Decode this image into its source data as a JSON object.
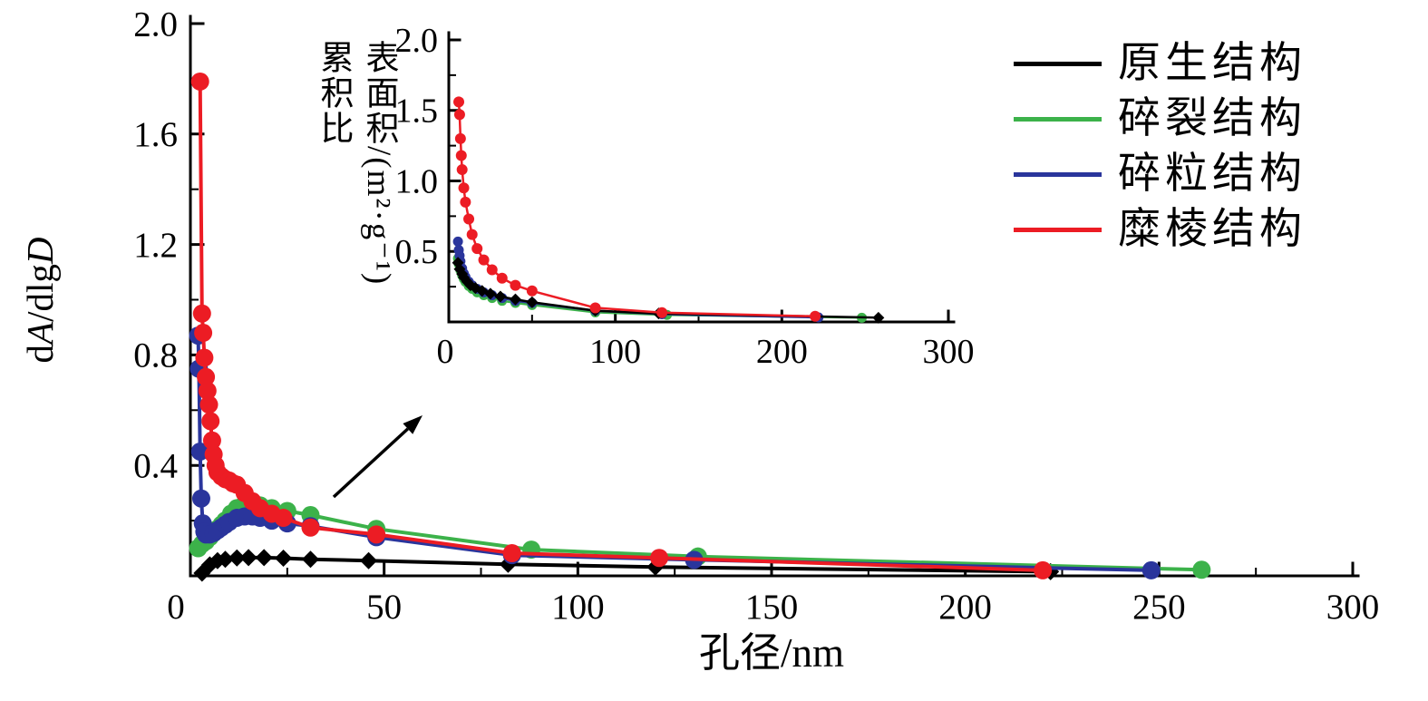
{
  "figure": {
    "background": "#ffffff",
    "text_color": "#000000"
  },
  "legend": {
    "position": "top-right",
    "items": [
      {
        "label": "原生结构",
        "series_id": "primary",
        "color": "#000000"
      },
      {
        "label": "碎裂结构",
        "series_id": "fractured",
        "color": "#3cb24a"
      },
      {
        "label": "碎粒结构",
        "series_id": "granular",
        "color": "#2a359c"
      },
      {
        "label": "糜棱结构",
        "series_id": "mylonitic",
        "color": "#ec1c24"
      }
    ]
  },
  "annotations": {
    "inset_pointer_arrow": "black arrow from the main curves pointing to the inset plot"
  },
  "chart_data": [
    {
      "id": "main",
      "type": "line",
      "title": "",
      "xlabel": "孔径/nm",
      "ylabel": "dA/dlgD",
      "ylabel_segments": [
        {
          "text": "d",
          "italic": false
        },
        {
          "text": "A",
          "italic": true
        },
        {
          "text": "/dlg",
          "italic": false
        },
        {
          "text": "D",
          "italic": true
        }
      ],
      "xlim": [
        0,
        300
      ],
      "ylim": [
        0,
        2.0
      ],
      "x_ticks": [
        0,
        50,
        100,
        150,
        200,
        250,
        300
      ],
      "x_tick_labels": [
        "0",
        "50",
        "100",
        "150",
        "200",
        "250",
        "300"
      ],
      "y_ticks": [
        0.4,
        0.8,
        1.2,
        1.6,
        2.0
      ],
      "y_tick_labels": [
        "0.4",
        "0.8",
        "1.2",
        "1.6",
        "2.0"
      ],
      "x_minor_step": 25,
      "y_minor_step": 0.2,
      "grid": false,
      "series": [
        {
          "id": "primary",
          "name": "原生结构",
          "color": "#000000",
          "marker": "diamond",
          "marker_size": 9.5,
          "points": [
            [
              3,
              0.01
            ],
            [
              5,
              0.04
            ],
            [
              7,
              0.055
            ],
            [
              9,
              0.06
            ],
            [
              12,
              0.065
            ],
            [
              15,
              0.066
            ],
            [
              19,
              0.066
            ],
            [
              24,
              0.064
            ],
            [
              31,
              0.06
            ],
            [
              46,
              0.055
            ],
            [
              82,
              0.042
            ],
            [
              120,
              0.032
            ],
            [
              222,
              0.015
            ]
          ]
        },
        {
          "id": "fractured",
          "name": "碎裂结构",
          "color": "#3cb24a",
          "marker": "circle",
          "marker_size": 10,
          "points": [
            [
              2,
              0.1
            ],
            [
              3,
              0.115
            ],
            [
              4,
              0.125
            ],
            [
              5,
              0.14
            ],
            [
              6,
              0.155
            ],
            [
              7,
              0.17
            ],
            [
              8,
              0.185
            ],
            [
              9,
              0.2
            ],
            [
              10.5,
              0.225
            ],
            [
              12,
              0.245
            ],
            [
              14,
              0.26
            ],
            [
              16,
              0.265
            ],
            [
              18,
              0.255
            ],
            [
              21,
              0.245
            ],
            [
              25,
              0.235
            ],
            [
              31,
              0.22
            ],
            [
              48,
              0.17
            ],
            [
              88,
              0.095
            ],
            [
              131,
              0.07
            ],
            [
              261,
              0.022
            ]
          ]
        },
        {
          "id": "granular",
          "name": "碎粒结构",
          "color": "#2a359c",
          "marker": "circle",
          "marker_size": 10,
          "points": [
            [
              2,
              0.87
            ],
            [
              2.2,
              0.75
            ],
            [
              2.5,
              0.45
            ],
            [
              2.8,
              0.28
            ],
            [
              3.2,
              0.19
            ],
            [
              3.6,
              0.16
            ],
            [
              4,
              0.15
            ],
            [
              5,
              0.15
            ],
            [
              6,
              0.155
            ],
            [
              7,
              0.165
            ],
            [
              8,
              0.175
            ],
            [
              9,
              0.185
            ],
            [
              10,
              0.195
            ],
            [
              12,
              0.21
            ],
            [
              14,
              0.215
            ],
            [
              16,
              0.215
            ],
            [
              18,
              0.21
            ],
            [
              21,
              0.2
            ],
            [
              25,
              0.19
            ],
            [
              31,
              0.18
            ],
            [
              48,
              0.14
            ],
            [
              83,
              0.075
            ],
            [
              130,
              0.058
            ],
            [
              248,
              0.02
            ]
          ]
        },
        {
          "id": "mylonitic",
          "name": "糜棱结构",
          "color": "#ec1c24",
          "marker": "circle",
          "marker_size": 10,
          "points": [
            [
              2.5,
              1.79
            ],
            [
              3,
              0.95
            ],
            [
              3.3,
              0.88
            ],
            [
              3.6,
              0.79
            ],
            [
              4,
              0.72
            ],
            [
              4.4,
              0.67
            ],
            [
              4.8,
              0.62
            ],
            [
              5.2,
              0.56
            ],
            [
              5.6,
              0.49
            ],
            [
              6,
              0.44
            ],
            [
              6.5,
              0.4
            ],
            [
              7,
              0.375
            ],
            [
              8,
              0.36
            ],
            [
              9,
              0.35
            ],
            [
              10,
              0.345
            ],
            [
              11,
              0.335
            ],
            [
              12,
              0.33
            ],
            [
              14,
              0.3
            ],
            [
              16,
              0.27
            ],
            [
              18,
              0.245
            ],
            [
              21,
              0.225
            ],
            [
              24,
              0.21
            ],
            [
              31,
              0.175
            ],
            [
              48,
              0.15
            ],
            [
              83,
              0.082
            ],
            [
              121,
              0.065
            ],
            [
              220,
              0.02
            ]
          ]
        }
      ]
    },
    {
      "id": "inset",
      "type": "line",
      "title": "",
      "xlabel": "",
      "ylabel": "累积比表面积/(m²·g⁻¹)",
      "ylabel_lines": [
        "累积比",
        "表面积/(m²·g⁻¹)"
      ],
      "xlim": [
        0,
        300
      ],
      "ylim": [
        0,
        2.0
      ],
      "x_ticks": [
        0,
        100,
        200,
        300
      ],
      "x_tick_labels": [
        "0",
        "100",
        "200",
        "300"
      ],
      "y_ticks": [
        0.5,
        1.0,
        1.5,
        2.0
      ],
      "y_tick_labels": [
        "0.5",
        "1.0",
        "1.5",
        "2.0"
      ],
      "x_minor_step": 50,
      "y_minor_step": 0.25,
      "grid": false,
      "series": [
        {
          "id": "fractured",
          "name": "碎裂结构",
          "color": "#3cb24a",
          "marker": "circle",
          "marker_size": 5.5,
          "points": [
            [
              5.5,
              0.45
            ],
            [
              6,
              0.41
            ],
            [
              7,
              0.365
            ],
            [
              8,
              0.33
            ],
            [
              9,
              0.305
            ],
            [
              10,
              0.285
            ],
            [
              12,
              0.255
            ],
            [
              14,
              0.235
            ],
            [
              17,
              0.21
            ],
            [
              21,
              0.19
            ],
            [
              26,
              0.17
            ],
            [
              32,
              0.15
            ],
            [
              40,
              0.135
            ],
            [
              50,
              0.12
            ],
            [
              88,
              0.068
            ],
            [
              131,
              0.05
            ],
            [
              248,
              0.03
            ]
          ]
        },
        {
          "id": "granular",
          "name": "碎粒结构",
          "color": "#2a359c",
          "marker": "circle",
          "marker_size": 5.5,
          "points": [
            [
              5.5,
              0.57
            ],
            [
              6,
              0.51
            ],
            [
              6.5,
              0.47
            ],
            [
              7,
              0.43
            ],
            [
              8,
              0.38
            ],
            [
              9,
              0.345
            ],
            [
              10,
              0.32
            ],
            [
              12,
              0.285
            ],
            [
              14,
              0.26
            ],
            [
              17,
              0.235
            ],
            [
              21,
              0.21
            ],
            [
              26,
              0.19
            ],
            [
              32,
              0.17
            ],
            [
              40,
              0.15
            ],
            [
              50,
              0.135
            ],
            [
              88,
              0.08
            ],
            [
              128,
              0.055
            ],
            [
              222,
              0.032
            ]
          ]
        },
        {
          "id": "primary",
          "name": "原生结构",
          "color": "#000000",
          "marker": "diamond",
          "marker_size": 6.5,
          "points": [
            [
              5.5,
              0.42
            ],
            [
              6.5,
              0.375
            ],
            [
              8,
              0.34
            ],
            [
              9,
              0.315
            ],
            [
              11,
              0.285
            ],
            [
              13,
              0.26
            ],
            [
              16,
              0.24
            ],
            [
              20,
              0.22
            ],
            [
              25,
              0.2
            ],
            [
              31,
              0.18
            ],
            [
              40,
              0.16
            ],
            [
              50,
              0.14
            ],
            [
              88,
              0.08
            ],
            [
              126,
              0.06
            ],
            [
              258,
              0.03
            ]
          ]
        },
        {
          "id": "mylonitic",
          "name": "糜棱结构",
          "color": "#ec1c24",
          "marker": "circle",
          "marker_size": 6,
          "points": [
            [
              6,
              1.56
            ],
            [
              6.5,
              1.47
            ],
            [
              7,
              1.3
            ],
            [
              7.5,
              1.18
            ],
            [
              8,
              1.08
            ],
            [
              9,
              0.95
            ],
            [
              10,
              0.85
            ],
            [
              12,
              0.73
            ],
            [
              14,
              0.62
            ],
            [
              17,
              0.52
            ],
            [
              21,
              0.44
            ],
            [
              26,
              0.37
            ],
            [
              32,
              0.31
            ],
            [
              40,
              0.26
            ],
            [
              50,
              0.22
            ],
            [
              88,
              0.1
            ],
            [
              128,
              0.066
            ],
            [
              220,
              0.04
            ]
          ]
        }
      ]
    }
  ]
}
